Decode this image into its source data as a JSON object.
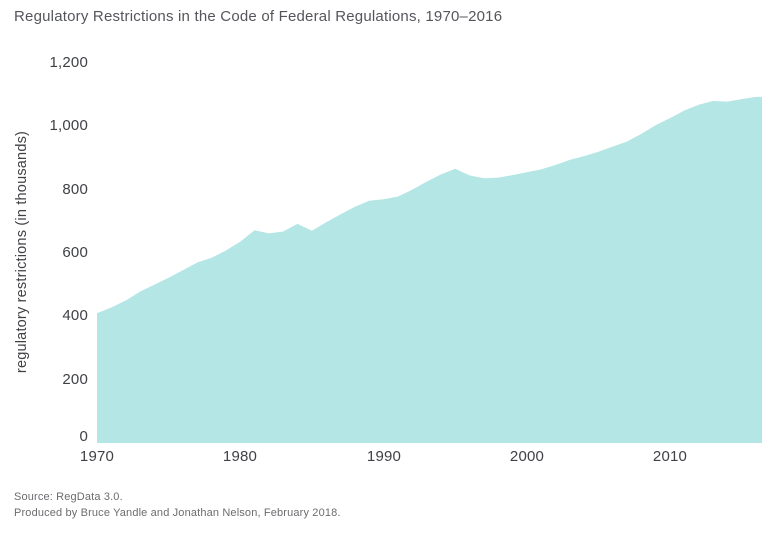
{
  "title": "Regulatory Restrictions in the Code of Federal Regulations, 1970–2016",
  "footer": {
    "source_line1": "Source: RegData 3.0.",
    "source_line2": "Produced by Bruce Yandle and Jonathan Nelson, February 2018."
  },
  "colors": {
    "area_fill": "#b3e6e4",
    "title_text": "#54565b",
    "axis_text": "#3f4145",
    "source_text": "#6b6c6f",
    "background": "#ffffff"
  },
  "chart_data": {
    "type": "area",
    "title": "Regulatory Restrictions in the Code of Federal Regulations, 1970–2016",
    "xlabel": "",
    "ylabel": "regulatory restrictions (in thousands)",
    "xlim": [
      1970,
      2016
    ],
    "ylim": [
      0,
      1200
    ],
    "grid": false,
    "legend": "none",
    "area_color": "#b3e6e4",
    "x": [
      1970,
      1971,
      1972,
      1973,
      1974,
      1975,
      1976,
      1977,
      1978,
      1979,
      1980,
      1981,
      1982,
      1983,
      1984,
      1985,
      1986,
      1987,
      1988,
      1989,
      1990,
      1991,
      1992,
      1993,
      1994,
      1995,
      1996,
      1997,
      1998,
      1999,
      2000,
      2001,
      2002,
      2003,
      2004,
      2005,
      2006,
      2007,
      2008,
      2009,
      2010,
      2011,
      2012,
      2013,
      2014,
      2015,
      2016
    ],
    "values": [
      410,
      428,
      450,
      478,
      500,
      522,
      546,
      570,
      585,
      608,
      636,
      672,
      662,
      668,
      692,
      670,
      697,
      722,
      746,
      765,
      770,
      778,
      800,
      825,
      848,
      866,
      845,
      836,
      838,
      846,
      855,
      864,
      878,
      894,
      906,
      920,
      936,
      952,
      976,
      1004,
      1026,
      1050,
      1068,
      1080,
      1078,
      1086,
      1093
    ],
    "y_ticks": [
      0,
      200,
      400,
      600,
      800,
      1000,
      1200
    ],
    "y_tick_labels": [
      "0",
      "200",
      "400",
      "600",
      "800",
      "1,000",
      "1,200"
    ],
    "x_ticks": [
      1970,
      1980,
      1990,
      2000,
      2010
    ],
    "x_tick_labels": [
      "1970",
      "1980",
      "1990",
      "2000",
      "2010"
    ]
  }
}
